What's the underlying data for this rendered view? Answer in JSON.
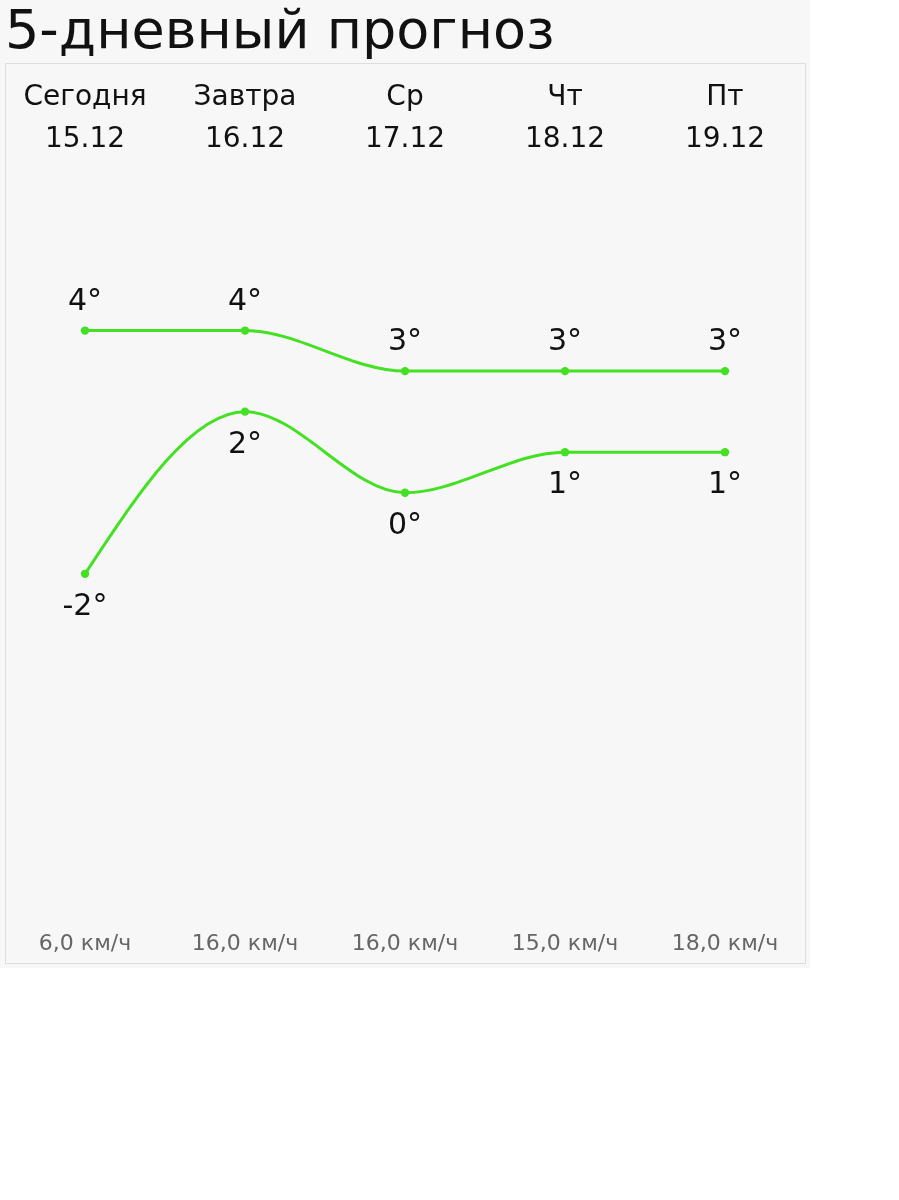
{
  "chart_data": {
    "type": "line",
    "title": "5-дневный прогноз",
    "categories": [
      "Сегодня\n15.12",
      "Завтра\n16.12",
      "Ср\n17.12",
      "Чт\n18.12",
      "Пт\n19.12"
    ],
    "series": [
      {
        "color": "#44e024",
        "values": [
          4,
          4,
          3,
          3,
          3
        ],
        "value_labels": [
          "4°",
          "4°",
          "3°",
          "3°",
          "3°"
        ]
      },
      {
        "color": "#44e024",
        "values": [
          -2,
          2,
          0,
          1,
          1
        ],
        "value_labels": [
          "-2°",
          "2°",
          "0°",
          "1°",
          "1°"
        ]
      }
    ],
    "marker": "circle",
    "annotations": [
      "6,0 км/ч",
      "16,0 км/ч",
      "16,0 км/ч",
      "15,0 км/ч",
      "18,0 км/ч"
    ]
  }
}
